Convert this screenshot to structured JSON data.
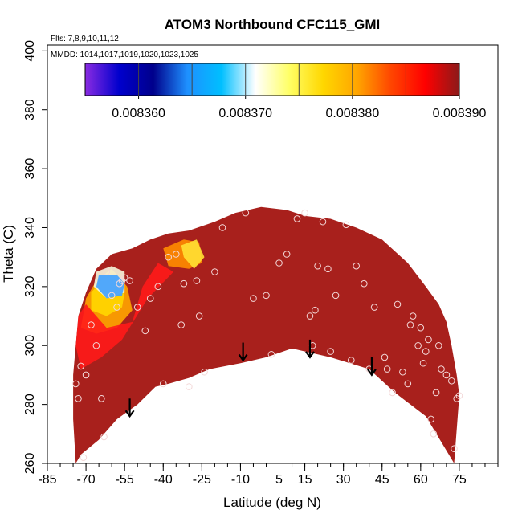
{
  "chart_data": {
    "type": "heatmap",
    "title": "ATOM3 Northbound CFC115_GMI",
    "notes": {
      "flights": "Flts: 7,8,9,10,11,12",
      "dates": "MMDD: 1014,1017,1019,1020,1023,1025"
    },
    "xlabel": "Latitude (deg N)",
    "ylabel": "Theta (C)",
    "xlim": [
      -85,
      90
    ],
    "ylim": [
      260,
      402
    ],
    "x_ticks": [
      -85,
      -70,
      -55,
      -40,
      -25,
      -10,
      5,
      15,
      30,
      45,
      60,
      75
    ],
    "y_ticks": [
      260,
      280,
      300,
      320,
      340,
      360,
      380,
      400
    ],
    "colorbar": {
      "range": [
        0.008355,
        0.00839
      ],
      "tick_values": [
        0.00836,
        0.00837,
        0.00838,
        0.00839
      ],
      "tick_labels": [
        "0.008360",
        "0.008370",
        "0.008380",
        "0.008390"
      ],
      "colors": [
        "#8a2be2",
        "#0000cd",
        "#00008b",
        "#1e90ff",
        "#00bfff",
        "#ffffff",
        "#ffff66",
        "#ffd700",
        "#ffa500",
        "#ff4500",
        "#ff0000",
        "#8b1a1a"
      ]
    },
    "field_color": "#a8201c",
    "outline_top": [
      [
        -73,
        310
      ],
      [
        -70,
        318
      ],
      [
        -66,
        326
      ],
      [
        -60,
        331
      ],
      [
        -52,
        333
      ],
      [
        -45,
        336
      ],
      [
        -38,
        338
      ],
      [
        -30,
        339
      ],
      [
        -20,
        342
      ],
      [
        -12,
        345
      ],
      [
        -2,
        347
      ],
      [
        8,
        346
      ],
      [
        15,
        344
      ],
      [
        25,
        343
      ],
      [
        35,
        340
      ],
      [
        45,
        336
      ],
      [
        55,
        328
      ],
      [
        62,
        320
      ],
      [
        67,
        314
      ],
      [
        70,
        308
      ],
      [
        72,
        300
      ],
      [
        74,
        290
      ],
      [
        75,
        283
      ],
      [
        73,
        260
      ]
    ],
    "outline_bottom": [
      [
        73,
        260
      ],
      [
        62,
        276
      ],
      [
        50,
        284
      ],
      [
        40,
        292
      ],
      [
        25,
        296
      ],
      [
        10,
        299
      ],
      [
        0,
        296
      ],
      [
        -10,
        294
      ],
      [
        -22,
        292
      ],
      [
        -30,
        289
      ],
      [
        -38,
        287
      ],
      [
        -43,
        286
      ],
      [
        -50,
        280
      ],
      [
        -58,
        275
      ],
      [
        -65,
        268
      ],
      [
        -72,
        263
      ],
      [
        -74,
        260
      ]
    ],
    "outline_west": [
      [
        -74,
        260
      ],
      [
        -75,
        275
      ],
      [
        -75,
        290
      ],
      [
        -74,
        300
      ]
    ],
    "warm_regions": [
      {
        "name": "orange-yellow",
        "color": "#ffa500",
        "polygon": [
          [
            -70,
            316
          ],
          [
            -66,
            322
          ],
          [
            -60,
            326
          ],
          [
            -54,
            320
          ],
          [
            -52,
            312
          ],
          [
            -58,
            306
          ],
          [
            -66,
            304
          ],
          [
            -72,
            306
          ]
        ]
      },
      {
        "name": "yellow-band",
        "color": "#ffd700",
        "polygon": [
          [
            -68,
            318
          ],
          [
            -64,
            322
          ],
          [
            -58,
            324
          ],
          [
            -55,
            318
          ],
          [
            -56,
            313
          ],
          [
            -62,
            310
          ],
          [
            -68,
            312
          ]
        ]
      },
      {
        "name": "pale-white",
        "color": "#f5f5dc",
        "polygon": [
          [
            -66,
            325
          ],
          [
            -60,
            327
          ],
          [
            -55,
            325
          ],
          [
            -55,
            318
          ],
          [
            -62,
            316
          ],
          [
            -67,
            320
          ]
        ]
      },
      {
        "name": "cyan-patch",
        "color": "#3fa0ff",
        "polygon": [
          [
            -65,
            324
          ],
          [
            -58,
            324
          ],
          [
            -55,
            321
          ],
          [
            -56,
            317
          ],
          [
            -62,
            316
          ],
          [
            -66,
            320
          ]
        ]
      },
      {
        "name": "upper-orange-mid",
        "color": "#ff8c00",
        "polygon": [
          [
            -40,
            333
          ],
          [
            -32,
            336
          ],
          [
            -26,
            335
          ],
          [
            -25,
            328
          ],
          [
            -30,
            326
          ],
          [
            -38,
            327
          ]
        ]
      },
      {
        "name": "upper-yellow-mid",
        "color": "#ffe033",
        "polygon": [
          [
            -33,
            334
          ],
          [
            -27,
            336
          ],
          [
            -24,
            330
          ],
          [
            -28,
            326
          ],
          [
            -32,
            330
          ]
        ]
      },
      {
        "name": "red-west",
        "color": "#ff1a1a",
        "polygon": [
          [
            -74,
            300
          ],
          [
            -73,
            310
          ],
          [
            -70,
            314
          ],
          [
            -62,
            306
          ],
          [
            -52,
            308
          ],
          [
            -48,
            320
          ],
          [
            -42,
            328
          ],
          [
            -36,
            325
          ],
          [
            -46,
            316
          ],
          [
            -56,
            302
          ],
          [
            -64,
            296
          ],
          [
            -72,
            292
          ]
        ]
      }
    ],
    "points": [
      [
        -74,
        287
      ],
      [
        -73,
        282
      ],
      [
        -72,
        293
      ],
      [
        -70,
        290
      ],
      [
        -68,
        307
      ],
      [
        -66,
        300
      ],
      [
        -64,
        282
      ],
      [
        -63,
        269
      ],
      [
        -62,
        325
      ],
      [
        -60,
        317
      ],
      [
        -58,
        313
      ],
      [
        -57,
        321
      ],
      [
        -56,
        322
      ],
      [
        -55,
        323
      ],
      [
        -53,
        322
      ],
      [
        -50,
        313
      ],
      [
        -47,
        305
      ],
      [
        -45,
        316
      ],
      [
        -42,
        320
      ],
      [
        -40,
        287
      ],
      [
        -38,
        330
      ],
      [
        -35,
        331
      ],
      [
        -33,
        307
      ],
      [
        -32,
        321
      ],
      [
        -30,
        286
      ],
      [
        -27,
        322
      ],
      [
        -26,
        310
      ],
      [
        -24,
        291
      ],
      [
        -20,
        325
      ],
      [
        -17,
        340
      ],
      [
        -8,
        345
      ],
      [
        -5,
        316
      ],
      [
        0,
        317
      ],
      [
        2,
        297
      ],
      [
        5,
        328
      ],
      [
        8,
        331
      ],
      [
        12,
        343
      ],
      [
        15,
        345
      ],
      [
        17,
        310
      ],
      [
        18,
        300
      ],
      [
        19,
        312
      ],
      [
        20,
        327
      ],
      [
        22,
        342
      ],
      [
        24,
        326
      ],
      [
        25,
        298
      ],
      [
        27,
        317
      ],
      [
        31,
        341
      ],
      [
        33,
        295
      ],
      [
        35,
        327
      ],
      [
        38,
        321
      ],
      [
        40,
        292
      ],
      [
        42,
        313
      ],
      [
        46,
        296
      ],
      [
        47,
        292
      ],
      [
        49,
        284
      ],
      [
        51,
        314
      ],
      [
        53,
        291
      ],
      [
        55,
        287
      ],
      [
        56,
        307
      ],
      [
        57,
        310
      ],
      [
        59,
        300
      ],
      [
        60,
        306
      ],
      [
        61,
        294
      ],
      [
        62,
        298
      ],
      [
        63,
        302
      ],
      [
        64,
        275
      ],
      [
        65,
        270
      ],
      [
        66,
        284
      ],
      [
        67,
        300
      ],
      [
        68,
        292
      ],
      [
        70,
        290
      ],
      [
        72,
        288
      ],
      [
        73,
        265
      ],
      [
        74,
        282
      ],
      [
        75,
        283
      ],
      [
        -71,
        262
      ]
    ],
    "arrows": [
      [
        -53,
        282
      ],
      [
        -9,
        301
      ],
      [
        17,
        302
      ],
      [
        41,
        296
      ]
    ]
  }
}
